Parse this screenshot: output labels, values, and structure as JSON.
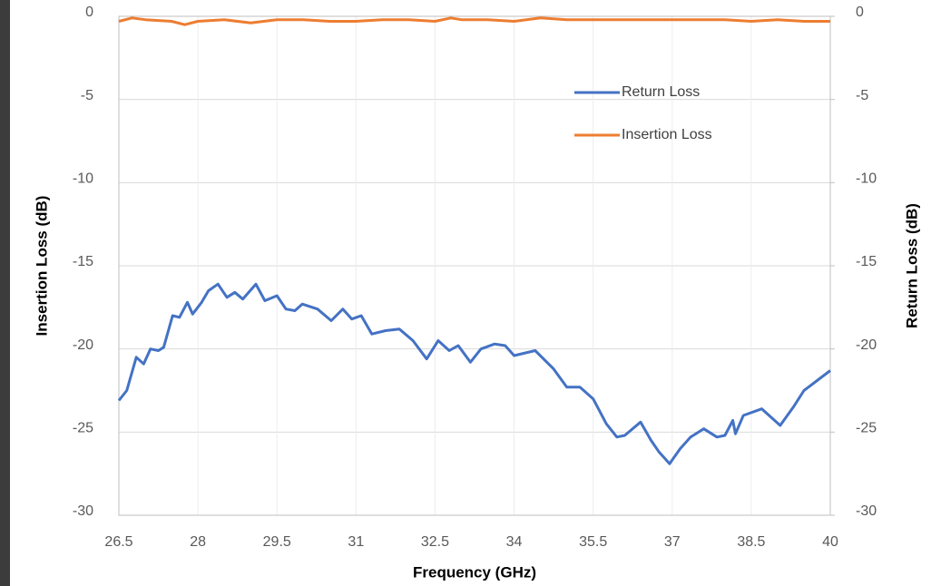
{
  "chart_data": {
    "type": "line",
    "xlabel": "Frequency (GHz)",
    "ylabel": "Insertion Loss (dB)",
    "y2label": "Return Loss (dB)",
    "xlim": [
      26.5,
      40
    ],
    "xticks": [
      26.5,
      28,
      29.5,
      31,
      32.5,
      34,
      35.5,
      37,
      38.5,
      40
    ],
    "ylim": [
      -30,
      0
    ],
    "yticks": [
      0,
      -5,
      -10,
      -15,
      -20,
      -25,
      -30
    ],
    "y2lim": [
      -30,
      0
    ],
    "y2ticks": [
      0,
      -5,
      -10,
      -15,
      -20,
      -25,
      -30
    ],
    "grid": true,
    "legend": "upper right",
    "series": [
      {
        "name": "Return Loss",
        "color": "#4472c4",
        "axis": "y2",
        "x": [
          26.5,
          26.65,
          26.83,
          26.97,
          27.1,
          27.25,
          27.35,
          27.52,
          27.65,
          27.8,
          27.9,
          28.07,
          28.2,
          28.38,
          28.55,
          28.7,
          28.85,
          29.1,
          29.27,
          29.5,
          29.67,
          29.84,
          29.98,
          30.27,
          30.53,
          30.75,
          30.92,
          31.1,
          31.3,
          31.56,
          31.82,
          32.08,
          32.34,
          32.56,
          32.77,
          32.94,
          33.17,
          33.37,
          33.63,
          33.83,
          34.0,
          34.4,
          34.75,
          35.0,
          35.25,
          35.5,
          35.75,
          35.95,
          36.1,
          36.4,
          36.6,
          36.75,
          36.95,
          37.15,
          37.35,
          37.6,
          37.85,
          38.0,
          38.15,
          38.2,
          38.35,
          38.7,
          39.05,
          39.3,
          39.5,
          39.75,
          40.0
        ],
        "values": [
          -23.1,
          -22.5,
          -20.5,
          -20.9,
          -20.0,
          -20.1,
          -19.9,
          -18.0,
          -18.1,
          -17.2,
          -17.9,
          -17.2,
          -16.5,
          -16.1,
          -16.9,
          -16.6,
          -17.0,
          -16.1,
          -17.1,
          -16.8,
          -17.6,
          -17.7,
          -17.3,
          -17.6,
          -18.3,
          -17.6,
          -18.2,
          -18.0,
          -19.1,
          -18.9,
          -18.8,
          -19.5,
          -20.6,
          -19.5,
          -20.1,
          -19.8,
          -20.8,
          -20.0,
          -19.7,
          -19.8,
          -20.4,
          -20.1,
          -21.2,
          -22.3,
          -22.3,
          -23.0,
          -24.5,
          -25.3,
          -25.2,
          -24.4,
          -25.5,
          -26.2,
          -26.9,
          -26.0,
          -25.3,
          -24.8,
          -25.3,
          -25.2,
          -24.3,
          -25.1,
          -24.0,
          -23.6,
          -24.6,
          -23.5,
          -22.5,
          -21.9,
          -21.3
        ]
      },
      {
        "name": "Insertion Loss",
        "color": "#ed7d31",
        "x": [
          26.5,
          26.75,
          27.0,
          27.5,
          27.75,
          28.0,
          28.5,
          29.0,
          29.5,
          30.0,
          30.5,
          31.0,
          31.5,
          32.0,
          32.5,
          32.8,
          33.0,
          33.5,
          34.0,
          34.5,
          35.0,
          35.5,
          36.0,
          36.5,
          37.0,
          37.5,
          38.0,
          38.5,
          39.0,
          39.5,
          40.0
        ],
        "values": [
          -0.3,
          -0.1,
          -0.2,
          -0.3,
          -0.5,
          -0.3,
          -0.2,
          -0.4,
          -0.2,
          -0.2,
          -0.3,
          -0.3,
          -0.2,
          -0.2,
          -0.3,
          -0.1,
          -0.2,
          -0.2,
          -0.3,
          -0.1,
          -0.2,
          -0.2,
          -0.2,
          -0.2,
          -0.2,
          -0.2,
          -0.2,
          -0.3,
          -0.2,
          -0.3,
          -0.3
        ]
      }
    ]
  }
}
